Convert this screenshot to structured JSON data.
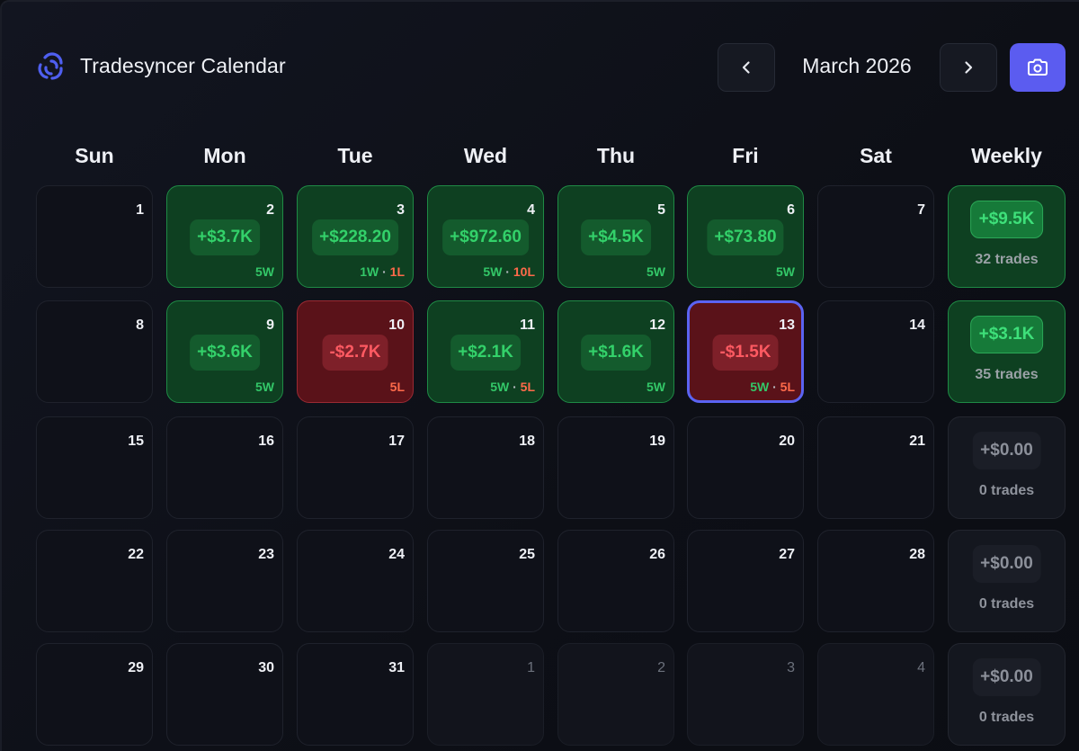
{
  "header": {
    "app_title": "Tradesyncer Calendar",
    "month_label": "March 2026",
    "prev_icon": "chevron-left-icon",
    "next_icon": "chevron-right-icon",
    "snapshot_icon": "camera-icon",
    "accent_color": "#5b5cf0"
  },
  "weekdays": [
    "Sun",
    "Mon",
    "Tue",
    "Wed",
    "Thu",
    "Fri",
    "Sat",
    "Weekly"
  ],
  "weeks": [
    {
      "days": [
        {
          "day": "1",
          "state": "empty"
        },
        {
          "day": "2",
          "state": "win",
          "pnl": "+$3.7K",
          "w": "5W",
          "l": ""
        },
        {
          "day": "3",
          "state": "win",
          "pnl": "+$228.20",
          "w": "1W",
          "l": "1L"
        },
        {
          "day": "4",
          "state": "win",
          "pnl": "+$972.60",
          "w": "5W",
          "l": "10L"
        },
        {
          "day": "5",
          "state": "win",
          "pnl": "+$4.5K",
          "w": "5W",
          "l": ""
        },
        {
          "day": "6",
          "state": "win",
          "pnl": "+$73.80",
          "w": "5W",
          "l": ""
        },
        {
          "day": "7",
          "state": "empty"
        }
      ],
      "weekly": {
        "pnl": "+$9.5K",
        "trades": "32 trades",
        "positive": true
      }
    },
    {
      "days": [
        {
          "day": "8",
          "state": "empty"
        },
        {
          "day": "9",
          "state": "win",
          "pnl": "+$3.6K",
          "w": "5W",
          "l": ""
        },
        {
          "day": "10",
          "state": "loss",
          "pnl": "-$2.7K",
          "w": "",
          "l": "5L"
        },
        {
          "day": "11",
          "state": "win",
          "pnl": "+$2.1K",
          "w": "5W",
          "l": "5L"
        },
        {
          "day": "12",
          "state": "win",
          "pnl": "+$1.6K",
          "w": "5W",
          "l": ""
        },
        {
          "day": "13",
          "state": "loss",
          "pnl": "-$1.5K",
          "w": "5W",
          "l": "5L",
          "selected": true
        },
        {
          "day": "14",
          "state": "empty"
        }
      ],
      "weekly": {
        "pnl": "+$3.1K",
        "trades": "35 trades",
        "positive": true
      }
    },
    {
      "days": [
        {
          "day": "15",
          "state": "empty"
        },
        {
          "day": "16",
          "state": "empty"
        },
        {
          "day": "17",
          "state": "empty"
        },
        {
          "day": "18",
          "state": "empty"
        },
        {
          "day": "19",
          "state": "empty"
        },
        {
          "day": "20",
          "state": "empty"
        },
        {
          "day": "21",
          "state": "empty"
        }
      ],
      "weekly": {
        "pnl": "+$0.00",
        "trades": "0 trades",
        "positive": false
      }
    },
    {
      "days": [
        {
          "day": "22",
          "state": "empty"
        },
        {
          "day": "23",
          "state": "empty"
        },
        {
          "day": "24",
          "state": "empty"
        },
        {
          "day": "25",
          "state": "empty"
        },
        {
          "day": "26",
          "state": "empty"
        },
        {
          "day": "27",
          "state": "empty"
        },
        {
          "day": "28",
          "state": "empty"
        }
      ],
      "weekly": {
        "pnl": "+$0.00",
        "trades": "0 trades",
        "positive": false
      }
    },
    {
      "days": [
        {
          "day": "29",
          "state": "empty"
        },
        {
          "day": "30",
          "state": "empty"
        },
        {
          "day": "31",
          "state": "empty"
        },
        {
          "day": "1",
          "state": "other"
        },
        {
          "day": "2",
          "state": "other"
        },
        {
          "day": "3",
          "state": "other"
        },
        {
          "day": "4",
          "state": "other"
        }
      ],
      "weekly": {
        "pnl": "+$0.00",
        "trades": "0 trades",
        "positive": false
      }
    }
  ],
  "colors": {
    "win_bg": "#0e4021",
    "win_text": "#33d16a",
    "loss_bg": "#5a1219",
    "loss_text": "#ff5a62",
    "selected_border": "#5b63f2"
  }
}
